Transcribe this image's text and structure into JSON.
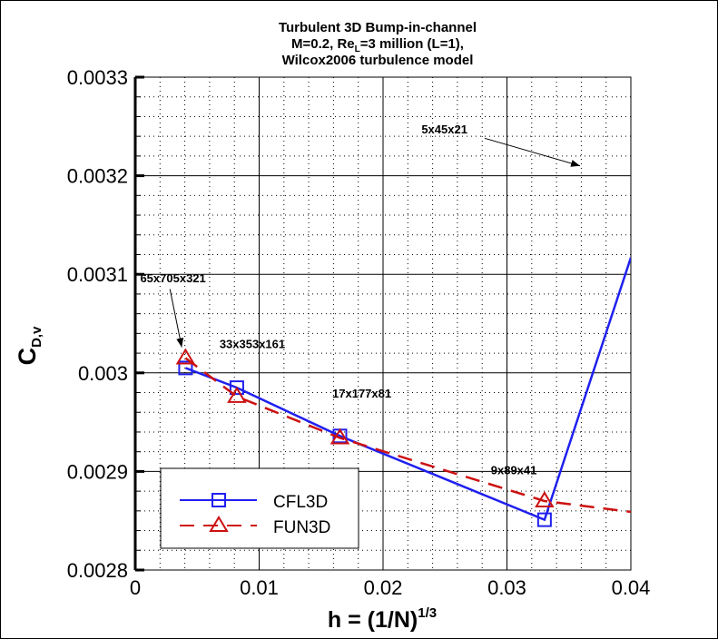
{
  "chart_data": {
    "type": "line",
    "title": [
      "Turbulent 3D Bump-in-channel",
      "M=0.2, Re_L=3 million (L=1),",
      "Wilcox2006 turbulence model"
    ],
    "title_line2": {
      "pre": "M=0.2, Re",
      "sub": "L",
      "post": "=3 million (L=1),"
    },
    "xlabel": {
      "main": "h = (1/N)",
      "sup": "1/3"
    },
    "ylabel": {
      "main": "C",
      "sub": "D,v"
    },
    "xlim": [
      0,
      0.04
    ],
    "ylim": [
      0.0028,
      0.0033
    ],
    "xticks": [
      "0",
      "0.01",
      "0.02",
      "0.03",
      "0.04"
    ],
    "yticks": [
      "0.0028",
      "0.0029",
      "0.003",
      "0.0031",
      "0.0032",
      "0.0033"
    ],
    "grid": true,
    "legend_position": "bottom-left",
    "series": [
      {
        "name": "CFL3D",
        "color": "#2020ee",
        "marker": "square",
        "dash": "solid",
        "x": [
          0.00406,
          0.0082,
          0.01652,
          0.03303,
          0.04
        ],
        "y": [
          0.003005,
          0.002985,
          0.002936,
          0.002851,
          0.003117
        ],
        "markers_at": [
          0,
          1,
          2,
          3
        ]
      },
      {
        "name": "FUN3D",
        "color": "#cc1111",
        "marker": "triangle",
        "dash": "dashed",
        "x": [
          0.00406,
          0.0082,
          0.01652,
          0.03303,
          0.04
        ],
        "y": [
          0.003015,
          0.002976,
          0.002934,
          0.00287,
          0.002859
        ],
        "markers_at": [
          0,
          1,
          2,
          3
        ]
      }
    ],
    "annotations": [
      {
        "text": "65x705x321",
        "x": 0.0004,
        "y": 0.003092,
        "arrow_to": [
          0.00375,
          0.003026
        ],
        "arrow_from": [
          0.0028,
          0.003085
        ]
      },
      {
        "text": "33x353x161",
        "x": 0.0068,
        "y": 0.003025
      },
      {
        "text": "17x177x81",
        "x": 0.0159,
        "y": 0.002975
      },
      {
        "text": "9x89x41",
        "x": 0.0287,
        "y": 0.002897
      },
      {
        "text": "5x45x21",
        "x": 0.0231,
        "y": 0.003243,
        "arrow_from": [
          0.0282,
          0.003238
        ],
        "arrow_to": [
          0.0359,
          0.00321
        ]
      }
    ]
  }
}
